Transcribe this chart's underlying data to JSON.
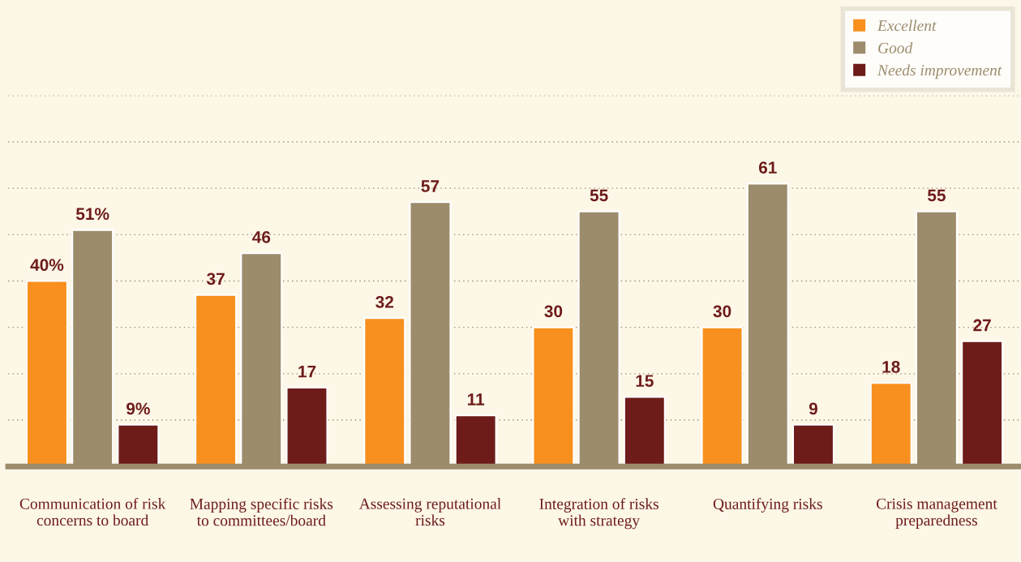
{
  "chart_data": {
    "type": "bar",
    "categories": [
      "Communication of risk\nconcerns to board",
      "Mapping specific risks\nto committees/board",
      "Assessing reputational\nrisks",
      "Integration of risks\nwith strategy",
      "Quantifying risks",
      "Crisis management\npreparedness"
    ],
    "series": [
      {
        "name": "Excellent",
        "color": "#f7901e",
        "values": [
          40,
          37,
          32,
          30,
          30,
          18
        ],
        "value_labels": [
          "40%",
          "37",
          "32",
          "30",
          "30",
          "18"
        ]
      },
      {
        "name": "Good",
        "color": "#9c8c6c",
        "values": [
          51,
          46,
          57,
          55,
          61,
          55
        ],
        "value_labels": [
          "51%",
          "46",
          "57",
          "55",
          "61",
          "55"
        ]
      },
      {
        "name": "Needs improvement",
        "color": "#6e1c1a",
        "values": [
          9,
          17,
          11,
          15,
          9,
          27
        ],
        "value_labels": [
          "9%",
          "17",
          "11",
          "15",
          "9",
          "27"
        ]
      }
    ],
    "ylim": [
      0,
      80
    ],
    "yticks": [
      {
        "value": 10,
        "label": null
      },
      {
        "value": 20,
        "label": null
      },
      {
        "value": 30,
        "label": null
      },
      {
        "value": 40,
        "label": null
      },
      {
        "value": 50,
        "label": null
      },
      {
        "value": 60,
        "label": null
      },
      {
        "value": 70,
        "label": null
      },
      {
        "value": 80,
        "label": null
      }
    ],
    "tick_labels": "x",
    "grid": "y",
    "legend": "top right"
  }
}
